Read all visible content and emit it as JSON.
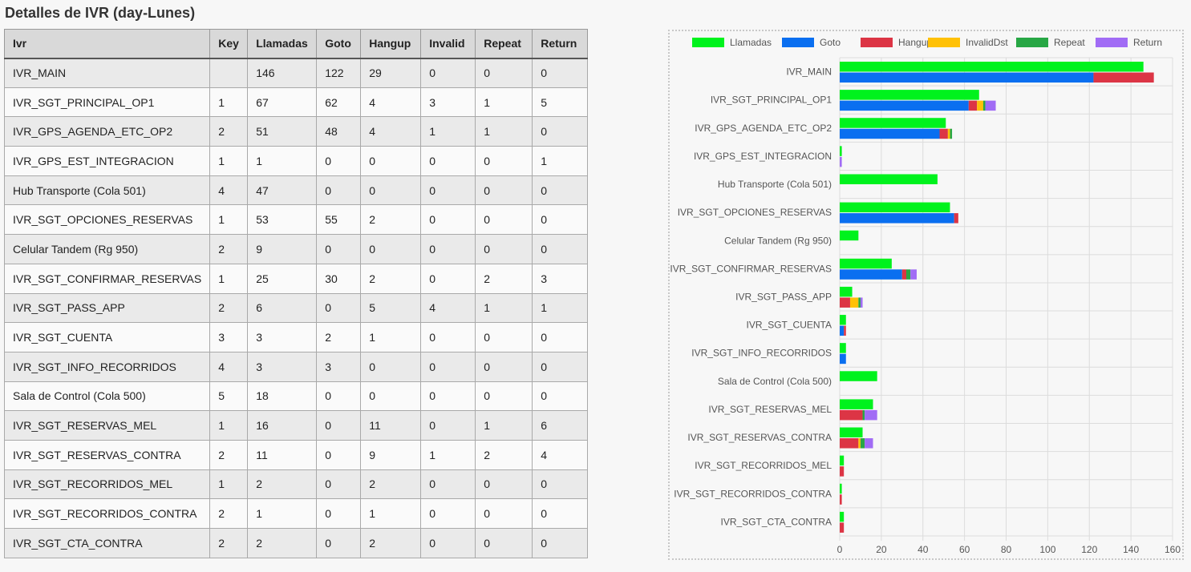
{
  "page": {
    "title": "Detalles de IVR (day-Lunes)"
  },
  "table": {
    "headers": [
      "Ivr",
      "Key",
      "Llamadas",
      "Goto",
      "Hangup",
      "Invalid",
      "Repeat",
      "Return"
    ],
    "rows": [
      [
        "IVR_MAIN",
        "",
        "146",
        "122",
        "29",
        "0",
        "0",
        "0"
      ],
      [
        "IVR_SGT_PRINCIPAL_OP1",
        "1",
        "67",
        "62",
        "4",
        "3",
        "1",
        "5"
      ],
      [
        "IVR_GPS_AGENDA_ETC_OP2",
        "2",
        "51",
        "48",
        "4",
        "1",
        "1",
        "0"
      ],
      [
        "IVR_GPS_EST_INTEGRACION",
        "1",
        "1",
        "0",
        "0",
        "0",
        "0",
        "1"
      ],
      [
        "Hub Transporte (Cola 501)",
        "4",
        "47",
        "0",
        "0",
        "0",
        "0",
        "0"
      ],
      [
        "IVR_SGT_OPCIONES_RESERVAS",
        "1",
        "53",
        "55",
        "2",
        "0",
        "0",
        "0"
      ],
      [
        "Celular Tandem (Rg 950)",
        "2",
        "9",
        "0",
        "0",
        "0",
        "0",
        "0"
      ],
      [
        "IVR_SGT_CONFIRMAR_RESERVAS",
        "1",
        "25",
        "30",
        "2",
        "0",
        "2",
        "3"
      ],
      [
        "IVR_SGT_PASS_APP",
        "2",
        "6",
        "0",
        "5",
        "4",
        "1",
        "1"
      ],
      [
        "IVR_SGT_CUENTA",
        "3",
        "3",
        "2",
        "1",
        "0",
        "0",
        "0"
      ],
      [
        "IVR_SGT_INFO_RECORRIDOS",
        "4",
        "3",
        "3",
        "0",
        "0",
        "0",
        "0"
      ],
      [
        "Sala de Control (Cola 500)",
        "5",
        "18",
        "0",
        "0",
        "0",
        "0",
        "0"
      ],
      [
        "IVR_SGT_RESERVAS_MEL",
        "1",
        "16",
        "0",
        "11",
        "0",
        "1",
        "6"
      ],
      [
        "IVR_SGT_RESERVAS_CONTRA",
        "2",
        "11",
        "0",
        "9",
        "1",
        "2",
        "4"
      ],
      [
        "IVR_SGT_RECORRIDOS_MEL",
        "1",
        "2",
        "0",
        "2",
        "0",
        "0",
        "0"
      ],
      [
        "IVR_SGT_RECORRIDOS_CONTRA",
        "2",
        "1",
        "0",
        "1",
        "0",
        "0",
        "0"
      ],
      [
        "IVR_SGT_CTA_CONTRA",
        "2",
        "2",
        "0",
        "2",
        "0",
        "0",
        "0"
      ]
    ]
  },
  "chart_data": {
    "type": "bar",
    "orientation": "horizontal",
    "stacked_groups": [
      [
        "Llamadas"
      ],
      [
        "Goto",
        "Hangup",
        "InvalidDst",
        "Repeat",
        "Return"
      ]
    ],
    "legend_position": "top",
    "grid": true,
    "xlim": [
      0,
      160
    ],
    "xticks": [
      0,
      20,
      40,
      60,
      80,
      100,
      120,
      140,
      160
    ],
    "categories": [
      "IVR_MAIN",
      "IVR_SGT_PRINCIPAL_OP1",
      "IVR_GPS_AGENDA_ETC_OP2",
      "IVR_GPS_EST_INTEGRACION",
      "Hub Transporte (Cola 501)",
      "IVR_SGT_OPCIONES_RESERVAS",
      "Celular Tandem (Rg 950)",
      "IVR_SGT_CONFIRMAR_RESERVAS",
      "IVR_SGT_PASS_APP",
      "IVR_SGT_CUENTA",
      "IVR_SGT_INFO_RECORRIDOS",
      "Sala de Control (Cola 500)",
      "IVR_SGT_RESERVAS_MEL",
      "IVR_SGT_RESERVAS_CONTRA",
      "IVR_SGT_RECORRIDOS_MEL",
      "IVR_SGT_RECORRIDOS_CONTRA",
      "IVR_SGT_CTA_CONTRA"
    ],
    "series": [
      {
        "name": "Llamadas",
        "color": "#00f21d",
        "values": [
          146,
          67,
          51,
          1,
          47,
          53,
          9,
          25,
          6,
          3,
          3,
          18,
          16,
          11,
          2,
          1,
          2
        ]
      },
      {
        "name": "Goto",
        "color": "#0a6ff0",
        "values": [
          122,
          62,
          48,
          0,
          0,
          55,
          0,
          30,
          0,
          2,
          3,
          0,
          0,
          0,
          0,
          0,
          0
        ]
      },
      {
        "name": "Hangup",
        "color": "#dc3545",
        "values": [
          29,
          4,
          4,
          0,
          0,
          2,
          0,
          2,
          5,
          1,
          0,
          0,
          11,
          9,
          2,
          1,
          2
        ]
      },
      {
        "name": "InvalidDst",
        "color": "#ffc107",
        "values": [
          0,
          3,
          1,
          0,
          0,
          0,
          0,
          0,
          4,
          0,
          0,
          0,
          0,
          1,
          0,
          0,
          0
        ]
      },
      {
        "name": "Repeat",
        "color": "#28a745",
        "values": [
          0,
          1,
          1,
          0,
          0,
          0,
          0,
          2,
          1,
          0,
          0,
          0,
          1,
          2,
          0,
          0,
          0
        ]
      },
      {
        "name": "Return",
        "color": "#a16cf5",
        "values": [
          0,
          5,
          0,
          1,
          0,
          0,
          0,
          3,
          1,
          0,
          0,
          0,
          6,
          4,
          0,
          0,
          0
        ]
      }
    ]
  }
}
